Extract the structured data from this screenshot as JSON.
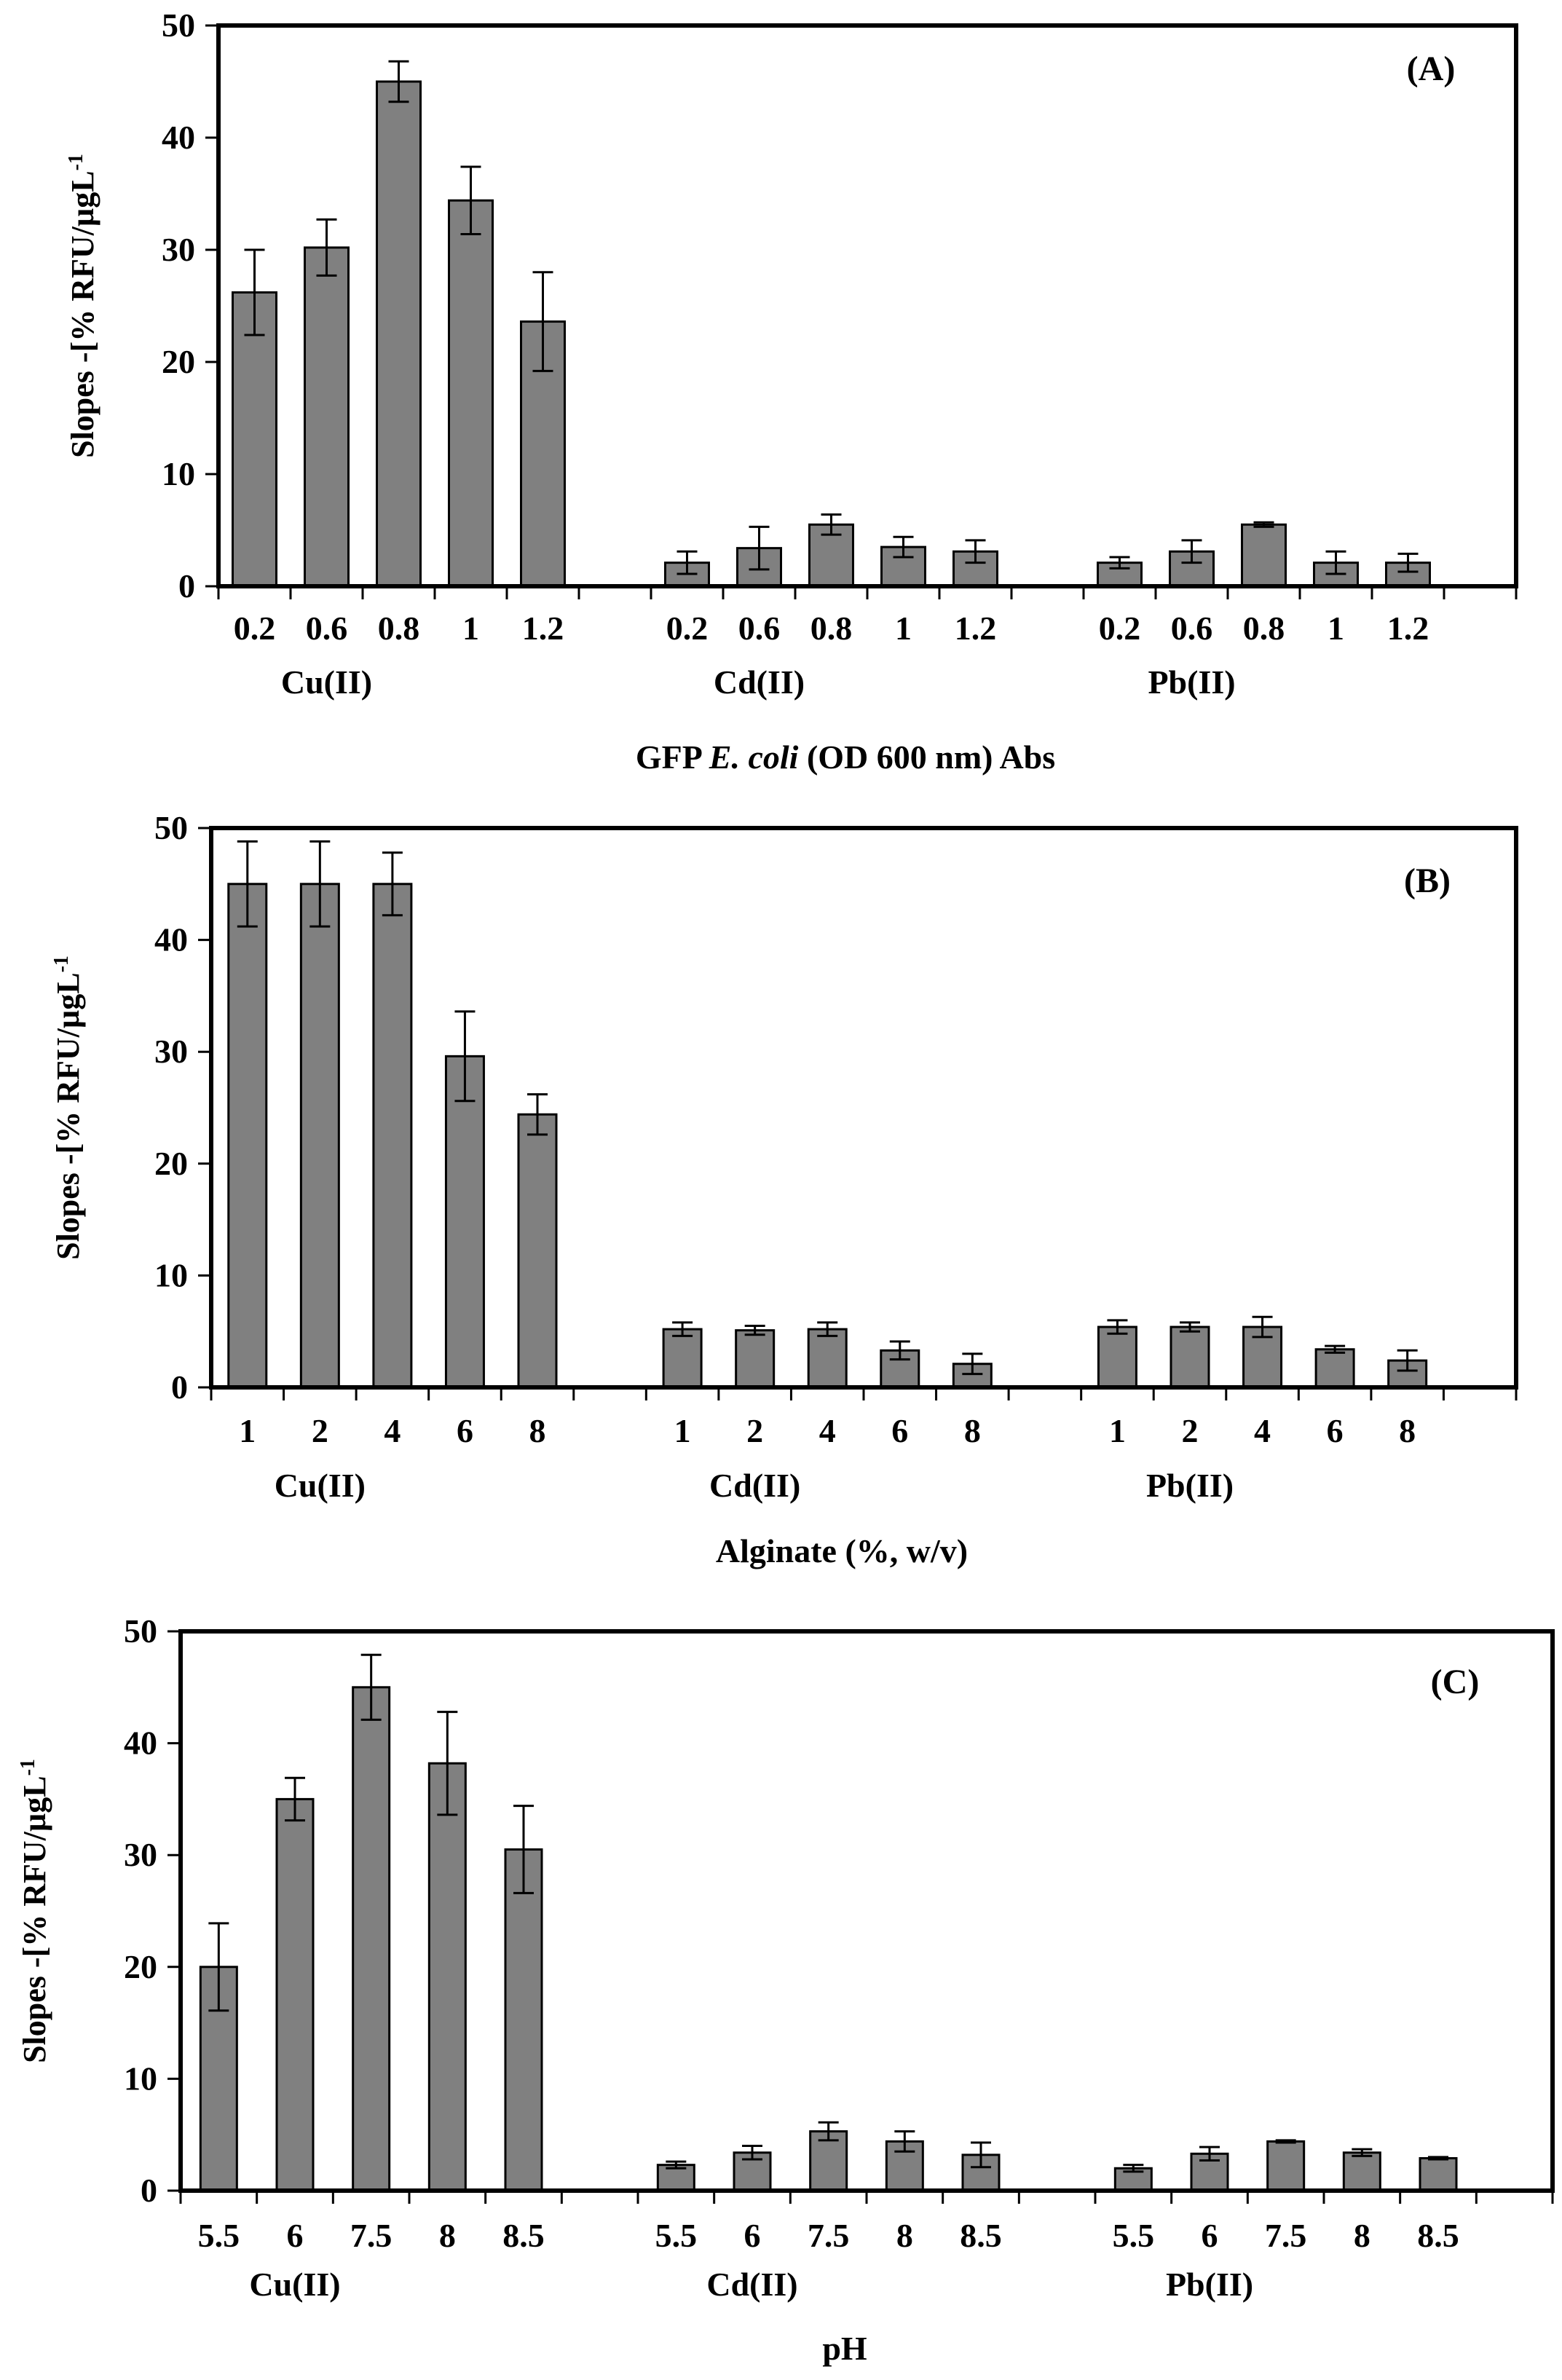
{
  "colors": {
    "bar_fill": "#808080",
    "bar_stroke": "#000000",
    "axis": "#000000",
    "background": "#ffffff"
  },
  "chart_data": [
    {
      "type": "bar",
      "panel_label": "(A)",
      "ylabel": "Slopes -[% RFU/µgL",
      "ylabel_sup": "-1",
      "ylabel_close": "",
      "xlabel_parts": [
        "GFP ",
        "E. coli",
        " (OD 600 nm) Abs"
      ],
      "ylim": [
        0,
        50
      ],
      "yticks": [
        "0",
        "10",
        "20",
        "30",
        "40",
        "50"
      ],
      "groups": [
        {
          "name": "Cu(II)",
          "categories": [
            "0.2",
            "0.6",
            "0.8",
            "1",
            "1.2"
          ],
          "values": [
            26.2,
            30.2,
            45,
            34.4,
            23.6
          ],
          "errors": [
            3.8,
            2.5,
            1.8,
            3,
            4.4
          ]
        },
        {
          "name": "Cd(II)",
          "categories": [
            "0.2",
            "0.6",
            "0.8",
            "1",
            "1.2"
          ],
          "values": [
            2.1,
            3.4,
            5.5,
            3.5,
            3.1
          ],
          "errors": [
            1.0,
            1.9,
            0.9,
            0.9,
            1.0
          ]
        },
        {
          "name": "Pb(II)",
          "categories": [
            "0.2",
            "0.6",
            "0.8",
            "1",
            "1.2"
          ],
          "values": [
            2.1,
            3.1,
            5.5,
            2.1,
            2.1
          ],
          "errors": [
            0.5,
            1.0,
            0.2,
            1.0,
            0.8
          ]
        }
      ]
    },
    {
      "type": "bar",
      "panel_label": "(B)",
      "ylabel": "Slopes -[% RFU/µgL",
      "ylabel_sup": "-1",
      "ylabel_close": "",
      "xlabel_parts": [
        "Alginate (%, w/v)",
        "",
        ""
      ],
      "ylim": [
        0,
        50
      ],
      "yticks": [
        "0",
        "10",
        "20",
        "30",
        "40",
        "50"
      ],
      "groups": [
        {
          "name": "Cu(II)",
          "categories": [
            "1",
            "2",
            "4",
            "6",
            "8"
          ],
          "values": [
            45,
            45,
            45,
            29.6,
            24.4
          ],
          "errors": [
            3.8,
            3.8,
            2.8,
            4,
            1.8
          ]
        },
        {
          "name": "Cd(II)",
          "categories": [
            "1",
            "2",
            "4",
            "6",
            "8"
          ],
          "values": [
            5.2,
            5.1,
            5.2,
            3.3,
            2.1
          ],
          "errors": [
            0.6,
            0.4,
            0.6,
            0.8,
            0.9
          ]
        },
        {
          "name": "Pb(II)",
          "categories": [
            "1",
            "2",
            "4",
            "6",
            "8"
          ],
          "values": [
            5.4,
            5.4,
            5.4,
            3.4,
            2.4
          ],
          "errors": [
            0.6,
            0.4,
            0.9,
            0.3,
            0.9
          ]
        }
      ]
    },
    {
      "type": "bar",
      "panel_label": "(C)",
      "ylabel": "Slopes -[% RFU/µgL",
      "ylabel_sup": "-1",
      "ylabel_close": "",
      "xlabel_parts": [
        "pH",
        "",
        ""
      ],
      "ylim": [
        0,
        50
      ],
      "yticks": [
        "0",
        "10",
        "20",
        "30",
        "40",
        "50"
      ],
      "groups": [
        {
          "name": "Cu(II)",
          "categories": [
            "5.5",
            "6",
            "7.5",
            "8",
            "8.5"
          ],
          "values": [
            20,
            35,
            45,
            38.2,
            30.5
          ],
          "errors": [
            3.9,
            1.9,
            2.9,
            4.6,
            3.9
          ]
        },
        {
          "name": "Cd(II)",
          "categories": [
            "5.5",
            "6",
            "7.5",
            "8",
            "8.5"
          ],
          "values": [
            2.3,
            3.4,
            5.3,
            4.4,
            3.2
          ],
          "errors": [
            0.3,
            0.6,
            0.8,
            0.9,
            1.1
          ]
        },
        {
          "name": "Pb(II)",
          "categories": [
            "5.5",
            "6",
            "7.5",
            "8",
            "8.5"
          ],
          "values": [
            2.0,
            3.3,
            4.4,
            3.4,
            2.9
          ],
          "errors": [
            0.3,
            0.6,
            0.1,
            0.3,
            0.1
          ]
        }
      ]
    }
  ]
}
